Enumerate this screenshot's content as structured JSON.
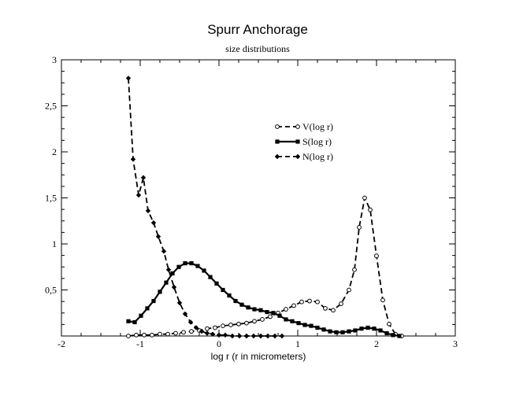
{
  "chart_data": {
    "type": "line",
    "title": "Spurr Anchorage",
    "subtitle": "size distributions",
    "xlabel": "log r (r in micrometers)",
    "ylabel": "",
    "xlim": [
      -2,
      3
    ],
    "ylim": [
      0,
      3
    ],
    "x_ticks": [
      -2,
      -1,
      0,
      1,
      2,
      3
    ],
    "x_tick_labels": [
      "-2",
      "-1",
      "0",
      "1",
      "2",
      "3"
    ],
    "y_ticks": [
      0.5,
      1,
      1.5,
      2,
      2.5,
      3
    ],
    "y_tick_labels": [
      "0,5",
      "1",
      "1,5",
      "2",
      "2,5",
      "3"
    ],
    "grid": false,
    "legend_position": "upper-center",
    "series": [
      {
        "name": "V(log r)",
        "line_style": "dashed",
        "marker": "open-circle",
        "x": [
          -1.15,
          -1.05,
          -0.95,
          -0.85,
          -0.75,
          -0.65,
          -0.55,
          -0.45,
          -0.35,
          -0.25,
          -0.15,
          -0.05,
          0.05,
          0.15,
          0.25,
          0.35,
          0.45,
          0.55,
          0.65,
          0.75,
          0.85,
          0.95,
          1.05,
          1.15,
          1.25,
          1.35,
          1.45,
          1.55,
          1.65,
          1.72,
          1.78,
          1.85,
          1.92,
          2.0,
          2.08,
          2.16,
          2.24,
          2.32
        ],
        "y": [
          0.0,
          0.01,
          0.01,
          0.01,
          0.02,
          0.02,
          0.03,
          0.04,
          0.05,
          0.06,
          0.08,
          0.09,
          0.11,
          0.12,
          0.13,
          0.14,
          0.16,
          0.18,
          0.21,
          0.25,
          0.29,
          0.33,
          0.37,
          0.38,
          0.37,
          0.3,
          0.28,
          0.35,
          0.5,
          0.72,
          1.18,
          1.5,
          1.37,
          0.87,
          0.39,
          0.13,
          0.02,
          0.0
        ]
      },
      {
        "name": "S(log r)",
        "line_style": "solid",
        "marker": "filled-square",
        "x": [
          -1.15,
          -1.07,
          -0.99,
          -0.91,
          -0.83,
          -0.75,
          -0.67,
          -0.59,
          -0.51,
          -0.43,
          -0.35,
          -0.27,
          -0.19,
          -0.11,
          -0.03,
          0.05,
          0.13,
          0.21,
          0.29,
          0.37,
          0.45,
          0.53,
          0.61,
          0.69,
          0.77,
          0.85,
          0.93,
          1.01,
          1.09,
          1.17,
          1.25,
          1.33,
          1.41,
          1.49,
          1.57,
          1.65,
          1.73,
          1.81,
          1.89,
          1.97,
          2.05,
          2.13,
          2.21,
          2.29
        ],
        "y": [
          0.16,
          0.15,
          0.22,
          0.3,
          0.38,
          0.48,
          0.58,
          0.68,
          0.75,
          0.79,
          0.79,
          0.76,
          0.71,
          0.64,
          0.57,
          0.5,
          0.44,
          0.38,
          0.34,
          0.31,
          0.29,
          0.28,
          0.26,
          0.25,
          0.22,
          0.18,
          0.16,
          0.14,
          0.12,
          0.11,
          0.09,
          0.07,
          0.05,
          0.04,
          0.04,
          0.05,
          0.06,
          0.08,
          0.09,
          0.08,
          0.06,
          0.03,
          0.01,
          0.0
        ]
      },
      {
        "name": "N(log r)",
        "line_style": "dashed",
        "marker": "filled-diamond",
        "x": [
          -1.15,
          -1.09,
          -1.02,
          -0.96,
          -0.9,
          -0.83,
          -0.77,
          -0.7,
          -0.64,
          -0.57,
          -0.5,
          -0.43,
          -0.36,
          -0.29,
          -0.22,
          -0.15,
          -0.08,
          0.0,
          0.08,
          0.17,
          0.26,
          0.35,
          0.44,
          0.53,
          0.62,
          0.71,
          0.8
        ],
        "y": [
          2.8,
          1.92,
          1.53,
          1.72,
          1.36,
          1.23,
          1.08,
          0.92,
          0.72,
          0.53,
          0.36,
          0.24,
          0.15,
          0.09,
          0.05,
          0.03,
          0.02,
          0.01,
          0.01,
          0.0,
          0.0,
          0.0,
          0.0,
          0.0,
          0.0,
          0.0,
          0.0
        ]
      }
    ]
  }
}
